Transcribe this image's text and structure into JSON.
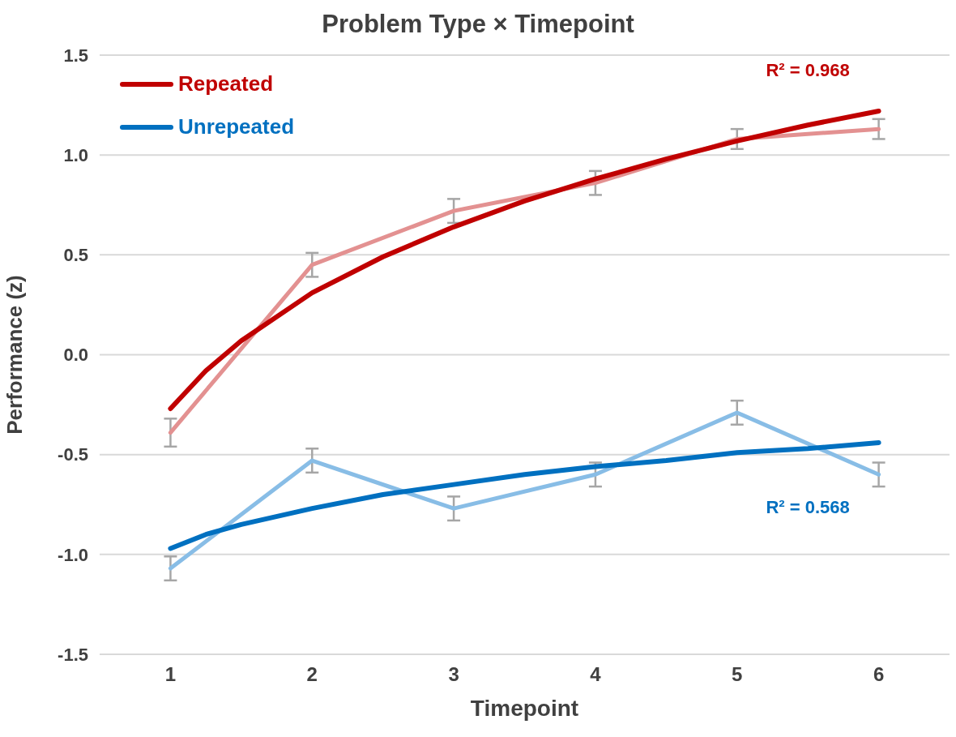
{
  "chart_data": {
    "type": "line",
    "title": "Problem Type × Timepoint",
    "xlabel": "Timepoint",
    "ylabel": "Performance (z)",
    "xlim": [
      0.5,
      6.5
    ],
    "xticks": [
      1,
      2,
      3,
      4,
      5,
      6
    ],
    "ylim": [
      -1.5,
      1.5
    ],
    "yticks": [
      {
        "value": -1.5,
        "label": "-1.5"
      },
      {
        "value": -1,
        "label": "-1.0"
      },
      {
        "value": -0.5,
        "label": "-0.5"
      },
      {
        "value": 0,
        "label": "0.0"
      },
      {
        "value": 0.5,
        "label": "0.5"
      },
      {
        "value": 1,
        "label": "1.0"
      },
      {
        "value": 1.5,
        "label": "1.5"
      }
    ],
    "grid": "y",
    "legend": "top left",
    "marker": "none",
    "line_style": "solid",
    "series": [
      {
        "color": "#e39191",
        "x": [
          1,
          2,
          3,
          4,
          5,
          6
        ],
        "values": [
          -0.39,
          0.45,
          0.72,
          0.86,
          1.08,
          1.13
        ],
        "errors": [
          0.07,
          0.06,
          0.06,
          0.06,
          0.05,
          0.05
        ]
      },
      {
        "color": "#88bde6",
        "x": [
          1,
          2,
          3,
          4,
          5,
          6
        ],
        "values": [
          -1.07,
          -0.53,
          -0.77,
          -0.6,
          -0.29,
          -0.6
        ],
        "errors": [
          0.06,
          0.06,
          0.06,
          0.06,
          0.06,
          0.06
        ]
      },
      {
        "name": "Repeated",
        "color": "#c00000",
        "x": [
          1,
          1.25,
          1.5,
          2,
          2.5,
          3,
          3.5,
          4,
          4.5,
          5,
          5.5,
          6
        ],
        "values": [
          -0.27,
          -0.08,
          0.07,
          0.31,
          0.49,
          0.64,
          0.77,
          0.88,
          0.98,
          1.07,
          1.15,
          1.22
        ]
      },
      {
        "name": "Unrepeated",
        "color": "#0070c0",
        "x": [
          1,
          1.25,
          1.5,
          2,
          2.5,
          3,
          3.5,
          4,
          4.5,
          5,
          5.5,
          6
        ],
        "values": [
          -0.97,
          -0.9,
          -0.85,
          -0.77,
          -0.7,
          -0.65,
          -0.6,
          -0.56,
          -0.53,
          -0.49,
          -0.47,
          -0.44
        ]
      }
    ],
    "annotations": [
      "R² = 0.968",
      "R² = 0.568"
    ]
  }
}
